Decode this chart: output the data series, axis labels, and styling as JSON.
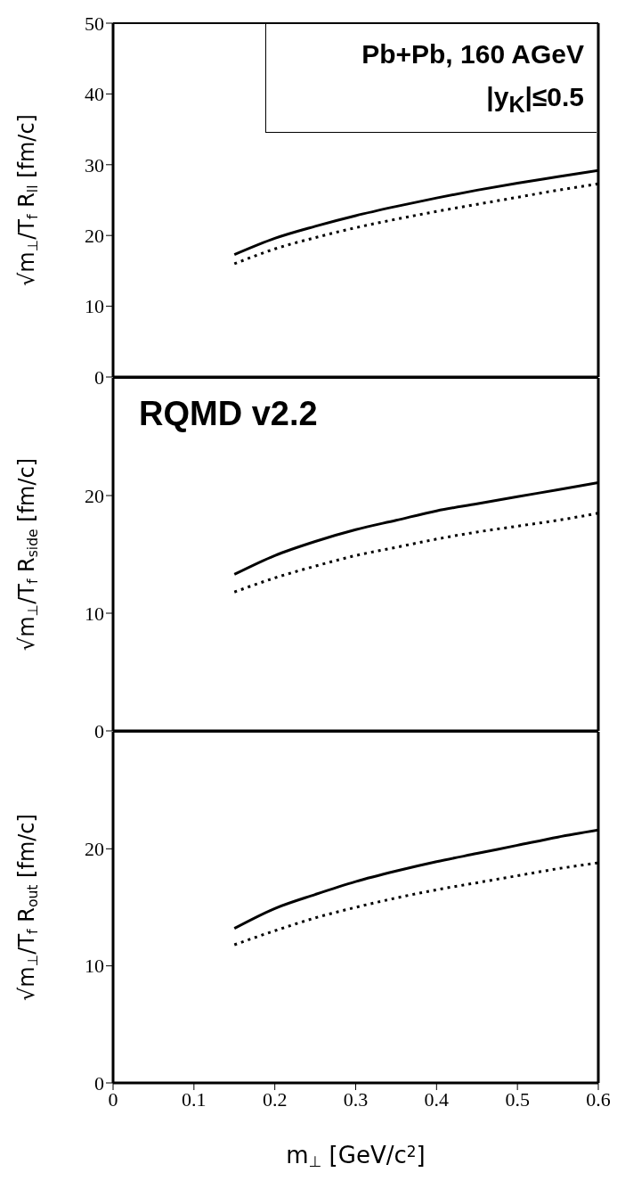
{
  "chart_data": [
    {
      "type": "line",
      "ylabel": "√m$_{⊥}$/T$_{f}$  R$_{ll}$ [fm/c]",
      "annotations": [
        "Pb+Pb, 160 AGeV",
        "|y$_{K}$|≤0.5"
      ],
      "x": [
        0.15,
        0.2,
        0.25,
        0.3,
        0.35,
        0.4,
        0.45,
        0.5,
        0.55,
        0.6
      ],
      "series": [
        {
          "color": "#000000",
          "line_style": "solid",
          "values": [
            17.3,
            19.6,
            21.3,
            22.8,
            24.1,
            25.3,
            26.4,
            27.4,
            28.3,
            29.2
          ]
        },
        {
          "color": "#000000",
          "line_style": "dotted",
          "values": [
            16.0,
            18.1,
            19.7,
            21.1,
            22.3,
            23.4,
            24.4,
            25.4,
            26.4,
            27.3
          ]
        }
      ],
      "xlim": [
        0,
        0.6
      ],
      "xticks": [
        0,
        0.1,
        0.2,
        0.3,
        0.4,
        0.5,
        0.6
      ],
      "ylim": [
        0,
        50
      ],
      "yticks": [
        0,
        10,
        20,
        30,
        40,
        50
      ],
      "tick_labels": "y",
      "marker": "none"
    },
    {
      "type": "line",
      "ylabel": "√m$_{⊥}$/T$_{f}$  R$_{side}$ [fm/c]",
      "annotations": [
        "RQMD v2.2"
      ],
      "x": [
        0.15,
        0.2,
        0.25,
        0.3,
        0.35,
        0.4,
        0.45,
        0.5,
        0.55,
        0.6
      ],
      "series": [
        {
          "color": "#000000",
          "line_style": "solid",
          "values": [
            13.3,
            14.9,
            16.1,
            17.1,
            17.9,
            18.7,
            19.3,
            19.9,
            20.5,
            21.1
          ]
        },
        {
          "color": "#000000",
          "line_style": "dotted",
          "values": [
            11.8,
            13.0,
            14.0,
            14.9,
            15.6,
            16.3,
            16.9,
            17.4,
            17.9,
            18.5
          ]
        }
      ],
      "xlim": [
        0,
        0.6
      ],
      "xticks": [
        0,
        0.1,
        0.2,
        0.3,
        0.4,
        0.5,
        0.6
      ],
      "ylim": [
        0,
        30
      ],
      "yticks": [
        0,
        10,
        20
      ],
      "tick_labels": "y",
      "marker": "none"
    },
    {
      "type": "line",
      "ylabel": "√m$_{⊥}$/T$_{f}$  R$_{out}$ [fm/c]",
      "xlabel": "m$_{⊥}$ [GeV/c$^{2}$]",
      "x": [
        0.15,
        0.2,
        0.25,
        0.3,
        0.35,
        0.4,
        0.45,
        0.5,
        0.55,
        0.6
      ],
      "series": [
        {
          "color": "#000000",
          "line_style": "solid",
          "values": [
            13.2,
            14.9,
            16.1,
            17.2,
            18.1,
            18.9,
            19.6,
            20.3,
            21.0,
            21.6
          ]
        },
        {
          "color": "#000000",
          "line_style": "dotted",
          "values": [
            11.8,
            13.0,
            14.1,
            15.0,
            15.8,
            16.5,
            17.1,
            17.7,
            18.3,
            18.8
          ]
        }
      ],
      "xlim": [
        0,
        0.6
      ],
      "xticks": [
        0,
        0.1,
        0.2,
        0.3,
        0.4,
        0.5,
        0.6
      ],
      "ylim": [
        0,
        30
      ],
      "yticks": [
        0,
        10,
        20
      ],
      "marker": "none"
    }
  ]
}
